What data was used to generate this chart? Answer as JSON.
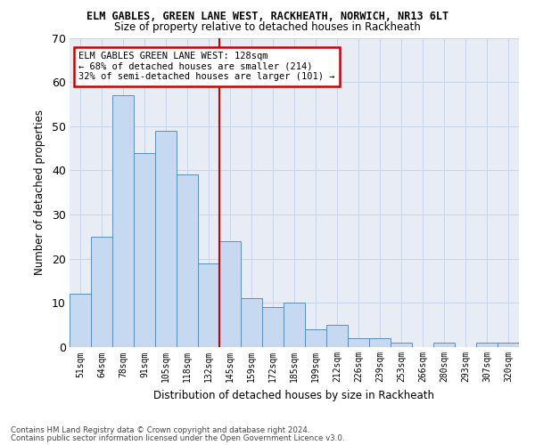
{
  "title1": "ELM GABLES, GREEN LANE WEST, RACKHEATH, NORWICH, NR13 6LT",
  "title2": "Size of property relative to detached houses in Rackheath",
  "xlabel": "Distribution of detached houses by size in Rackheath",
  "ylabel": "Number of detached properties",
  "categories": [
    "51sqm",
    "64sqm",
    "78sqm",
    "91sqm",
    "105sqm",
    "118sqm",
    "132sqm",
    "145sqm",
    "159sqm",
    "172sqm",
    "185sqm",
    "199sqm",
    "212sqm",
    "226sqm",
    "239sqm",
    "253sqm",
    "266sqm",
    "280sqm",
    "293sqm",
    "307sqm",
    "320sqm"
  ],
  "values": [
    12,
    25,
    57,
    44,
    49,
    39,
    19,
    24,
    11,
    9,
    10,
    4,
    5,
    2,
    2,
    1,
    0,
    1,
    0,
    1,
    1
  ],
  "bar_color": "#c6d9f0",
  "bar_edge_color": "#5a8fc2",
  "ref_line_x": 6.5,
  "ref_line_color": "#cc0000",
  "annotation_text": "ELM GABLES GREEN LANE WEST: 128sqm\n← 68% of detached houses are smaller (214)\n32% of semi-detached houses are larger (101) →",
  "annotation_box_color": "#ffffff",
  "annotation_box_edge": "#cc0000",
  "ylim": [
    0,
    70
  ],
  "yticks": [
    0,
    10,
    20,
    30,
    40,
    50,
    60,
    70
  ],
  "grid_color": "#c8d4e8",
  "bg_color": "#e8edf5",
  "fig_bg_color": "#ffffff",
  "footer1": "Contains HM Land Registry data © Crown copyright and database right 2024.",
  "footer2": "Contains public sector information licensed under the Open Government Licence v3.0."
}
